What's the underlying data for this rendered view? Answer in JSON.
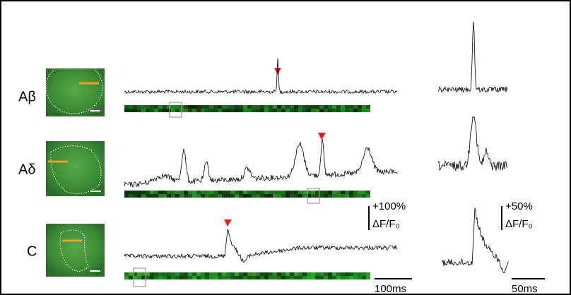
{
  "rows": [
    {
      "label": "Aβ"
    },
    {
      "label": "Aδ"
    },
    {
      "label": "C"
    }
  ],
  "scale_left": {
    "amplitude": "+100%",
    "unit": "ΔF/F₀",
    "time": "100ms"
  },
  "scale_right": {
    "amplitude": "+50%",
    "unit": "ΔF/F₀",
    "time": "50ms"
  }
}
